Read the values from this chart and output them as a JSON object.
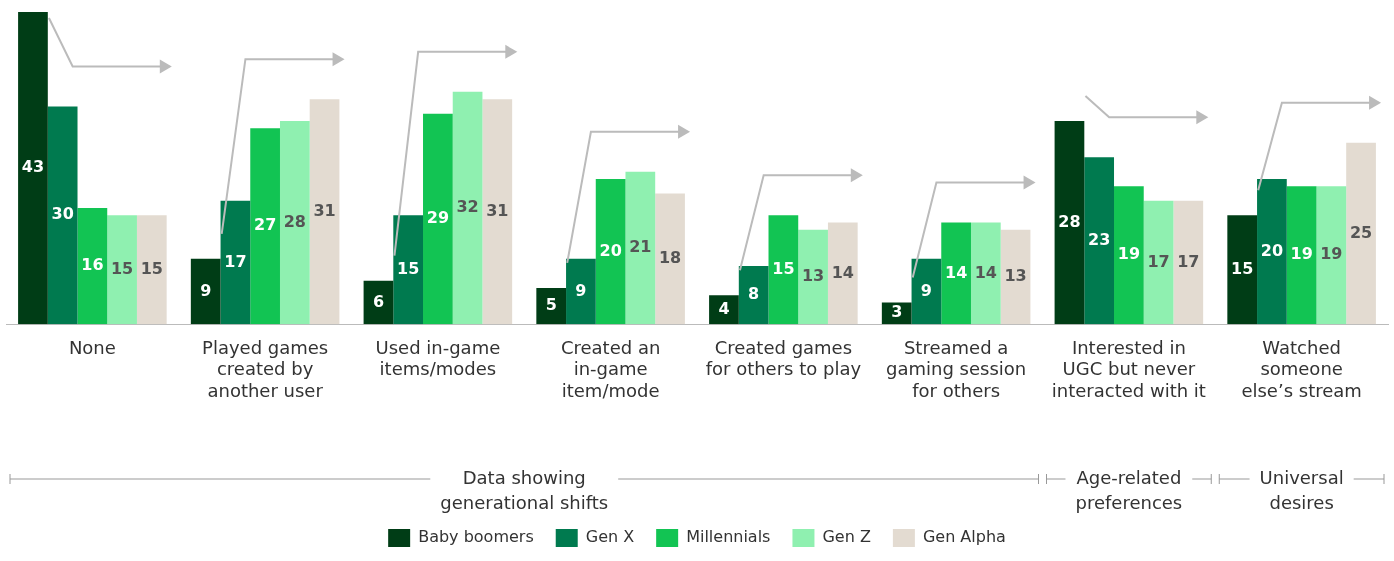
{
  "chart_data": {
    "type": "bar",
    "categories": [
      "None",
      "Played games\ncreated by\nanother user",
      "Used in-game\nitems/modes",
      "Created an\nin-game\nitem/mode",
      "Created games\nfor others to play",
      "Streamed a\ngaming session\nfor others",
      "Interested in\nUGC but never\ninteracted with it",
      "Watched\nsomeone\nelse’s stream"
    ],
    "series": [
      {
        "name": "Baby boomers",
        "color": "#003d16",
        "values": [
          43,
          9,
          6,
          5,
          4,
          3,
          28,
          15
        ]
      },
      {
        "name": "Gen X",
        "color": "#007a4f",
        "values": [
          30,
          17,
          15,
          9,
          8,
          9,
          23,
          20
        ]
      },
      {
        "name": "Millennials",
        "color": "#12c453",
        "values": [
          16,
          27,
          29,
          20,
          15,
          14,
          19,
          19
        ]
      },
      {
        "name": "Gen Z",
        "color": "#8ff0b0",
        "values": [
          15,
          28,
          32,
          21,
          13,
          14,
          17,
          19
        ]
      },
      {
        "name": "Gen Alpha",
        "color": "#e3dbd1",
        "values": [
          15,
          31,
          31,
          18,
          14,
          13,
          17,
          25
        ]
      }
    ],
    "annotations": [
      "Data showing\ngenerational shifts",
      "Age-related\npreferences",
      "Universal\ndesires"
    ],
    "data_labels": true,
    "tick_labels": "x",
    "grid": false,
    "legend": "bottom"
  }
}
